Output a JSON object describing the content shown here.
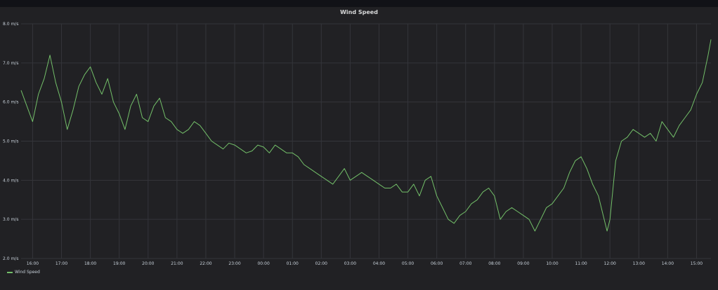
{
  "panel": {
    "title": "Wind Speed"
  },
  "colors": {
    "series": "#73bf69",
    "grid": "#34353a",
    "axis_text": "#c7d0d9",
    "background": "#212124"
  },
  "chart_data": {
    "type": "line",
    "title": "Wind Speed",
    "xlabel": "",
    "ylabel": "",
    "ylim": [
      2.0,
      8.0
    ],
    "yticks": [
      {
        "value": 2.0,
        "label": "2.0 m/s"
      },
      {
        "value": 3.0,
        "label": "3.0 m/s"
      },
      {
        "value": 4.0,
        "label": "4.0 m/s"
      },
      {
        "value": 5.0,
        "label": "5.0 m/s"
      },
      {
        "value": 6.0,
        "label": "6.0 m/s"
      },
      {
        "value": 7.0,
        "label": "7.0 m/s"
      },
      {
        "value": 8.0,
        "label": "8.0 m/s"
      }
    ],
    "xlim": [
      15.6,
      39.5
    ],
    "xticks": [
      {
        "value": 16,
        "label": "16:00"
      },
      {
        "value": 17,
        "label": "17:00"
      },
      {
        "value": 18,
        "label": "18:00"
      },
      {
        "value": 19,
        "label": "19:00"
      },
      {
        "value": 20,
        "label": "20:00"
      },
      {
        "value": 21,
        "label": "21:00"
      },
      {
        "value": 22,
        "label": "22:00"
      },
      {
        "value": 23,
        "label": "23:00"
      },
      {
        "value": 24,
        "label": "00:00"
      },
      {
        "value": 25,
        "label": "01:00"
      },
      {
        "value": 26,
        "label": "02:00"
      },
      {
        "value": 27,
        "label": "03:00"
      },
      {
        "value": 28,
        "label": "04:00"
      },
      {
        "value": 29,
        "label": "05:00"
      },
      {
        "value": 30,
        "label": "06:00"
      },
      {
        "value": 31,
        "label": "07:00"
      },
      {
        "value": 32,
        "label": "08:00"
      },
      {
        "value": 33,
        "label": "09:00"
      },
      {
        "value": 34,
        "label": "10:00"
      },
      {
        "value": 35,
        "label": "11:00"
      },
      {
        "value": 36,
        "label": "12:00"
      },
      {
        "value": 37,
        "label": "13:00"
      },
      {
        "value": 38,
        "label": "14:00"
      },
      {
        "value": 39,
        "label": "15:00"
      }
    ],
    "grid": true,
    "legend": "bottom-left",
    "series": [
      {
        "name": "Wind Speed",
        "x": [
          15.6,
          15.8,
          16.0,
          16.2,
          16.4,
          16.6,
          16.8,
          17.0,
          17.2,
          17.4,
          17.6,
          17.8,
          18.0,
          18.2,
          18.4,
          18.6,
          18.8,
          19.0,
          19.2,
          19.4,
          19.6,
          19.8,
          20.0,
          20.2,
          20.4,
          20.6,
          20.8,
          21.0,
          21.2,
          21.4,
          21.6,
          21.8,
          22.0,
          22.2,
          22.4,
          22.6,
          22.8,
          23.0,
          23.2,
          23.4,
          23.6,
          23.8,
          24.0,
          24.2,
          24.4,
          24.6,
          24.8,
          25.0,
          25.2,
          25.4,
          25.6,
          25.8,
          26.0,
          26.2,
          26.4,
          26.6,
          26.8,
          27.0,
          27.2,
          27.4,
          27.6,
          27.8,
          28.0,
          28.2,
          28.4,
          28.6,
          28.8,
          29.0,
          29.2,
          29.4,
          29.6,
          29.8,
          30.0,
          30.2,
          30.4,
          30.6,
          30.8,
          31.0,
          31.2,
          31.4,
          31.6,
          31.8,
          32.0,
          32.2,
          32.4,
          32.6,
          32.8,
          33.0,
          33.2,
          33.4,
          33.6,
          33.8,
          34.0,
          34.2,
          34.4,
          34.6,
          34.8,
          35.0,
          35.2,
          35.4,
          35.6,
          35.8,
          35.9,
          36.0,
          36.2,
          36.4,
          36.6,
          36.8,
          37.0,
          37.2,
          37.4,
          37.6,
          37.8,
          38.0,
          38.2,
          38.4,
          38.6,
          38.8,
          39.0,
          39.2,
          39.4,
          39.5
        ],
        "values": [
          6.3,
          5.9,
          5.5,
          6.2,
          6.6,
          7.2,
          6.5,
          6.0,
          5.3,
          5.8,
          6.4,
          6.7,
          6.9,
          6.5,
          6.2,
          6.6,
          6.0,
          5.7,
          5.3,
          5.9,
          6.2,
          5.6,
          5.5,
          5.9,
          6.1,
          5.6,
          5.5,
          5.3,
          5.2,
          5.3,
          5.5,
          5.4,
          5.2,
          5.0,
          4.9,
          4.8,
          4.95,
          4.9,
          4.8,
          4.7,
          4.75,
          4.9,
          4.85,
          4.7,
          4.9,
          4.8,
          4.7,
          4.7,
          4.6,
          4.4,
          4.3,
          4.2,
          4.1,
          4.0,
          3.9,
          4.1,
          4.3,
          4.0,
          4.1,
          4.2,
          4.1,
          4.0,
          3.9,
          3.8,
          3.8,
          3.9,
          3.7,
          3.7,
          3.9,
          3.6,
          4.0,
          4.1,
          3.6,
          3.3,
          3.0,
          2.9,
          3.1,
          3.2,
          3.4,
          3.5,
          3.7,
          3.8,
          3.6,
          3.0,
          3.2,
          3.3,
          3.2,
          3.1,
          3.0,
          2.7,
          3.0,
          3.3,
          3.4,
          3.6,
          3.8,
          4.2,
          4.5,
          4.6,
          4.3,
          3.9,
          3.6,
          3.0,
          2.7,
          3.0,
          4.5,
          5.0,
          5.1,
          5.3,
          5.2,
          5.1,
          5.2,
          5.0,
          5.5,
          5.3,
          5.1,
          5.4,
          5.6,
          5.8,
          6.2,
          6.5,
          7.2,
          7.6
        ]
      }
    ]
  }
}
